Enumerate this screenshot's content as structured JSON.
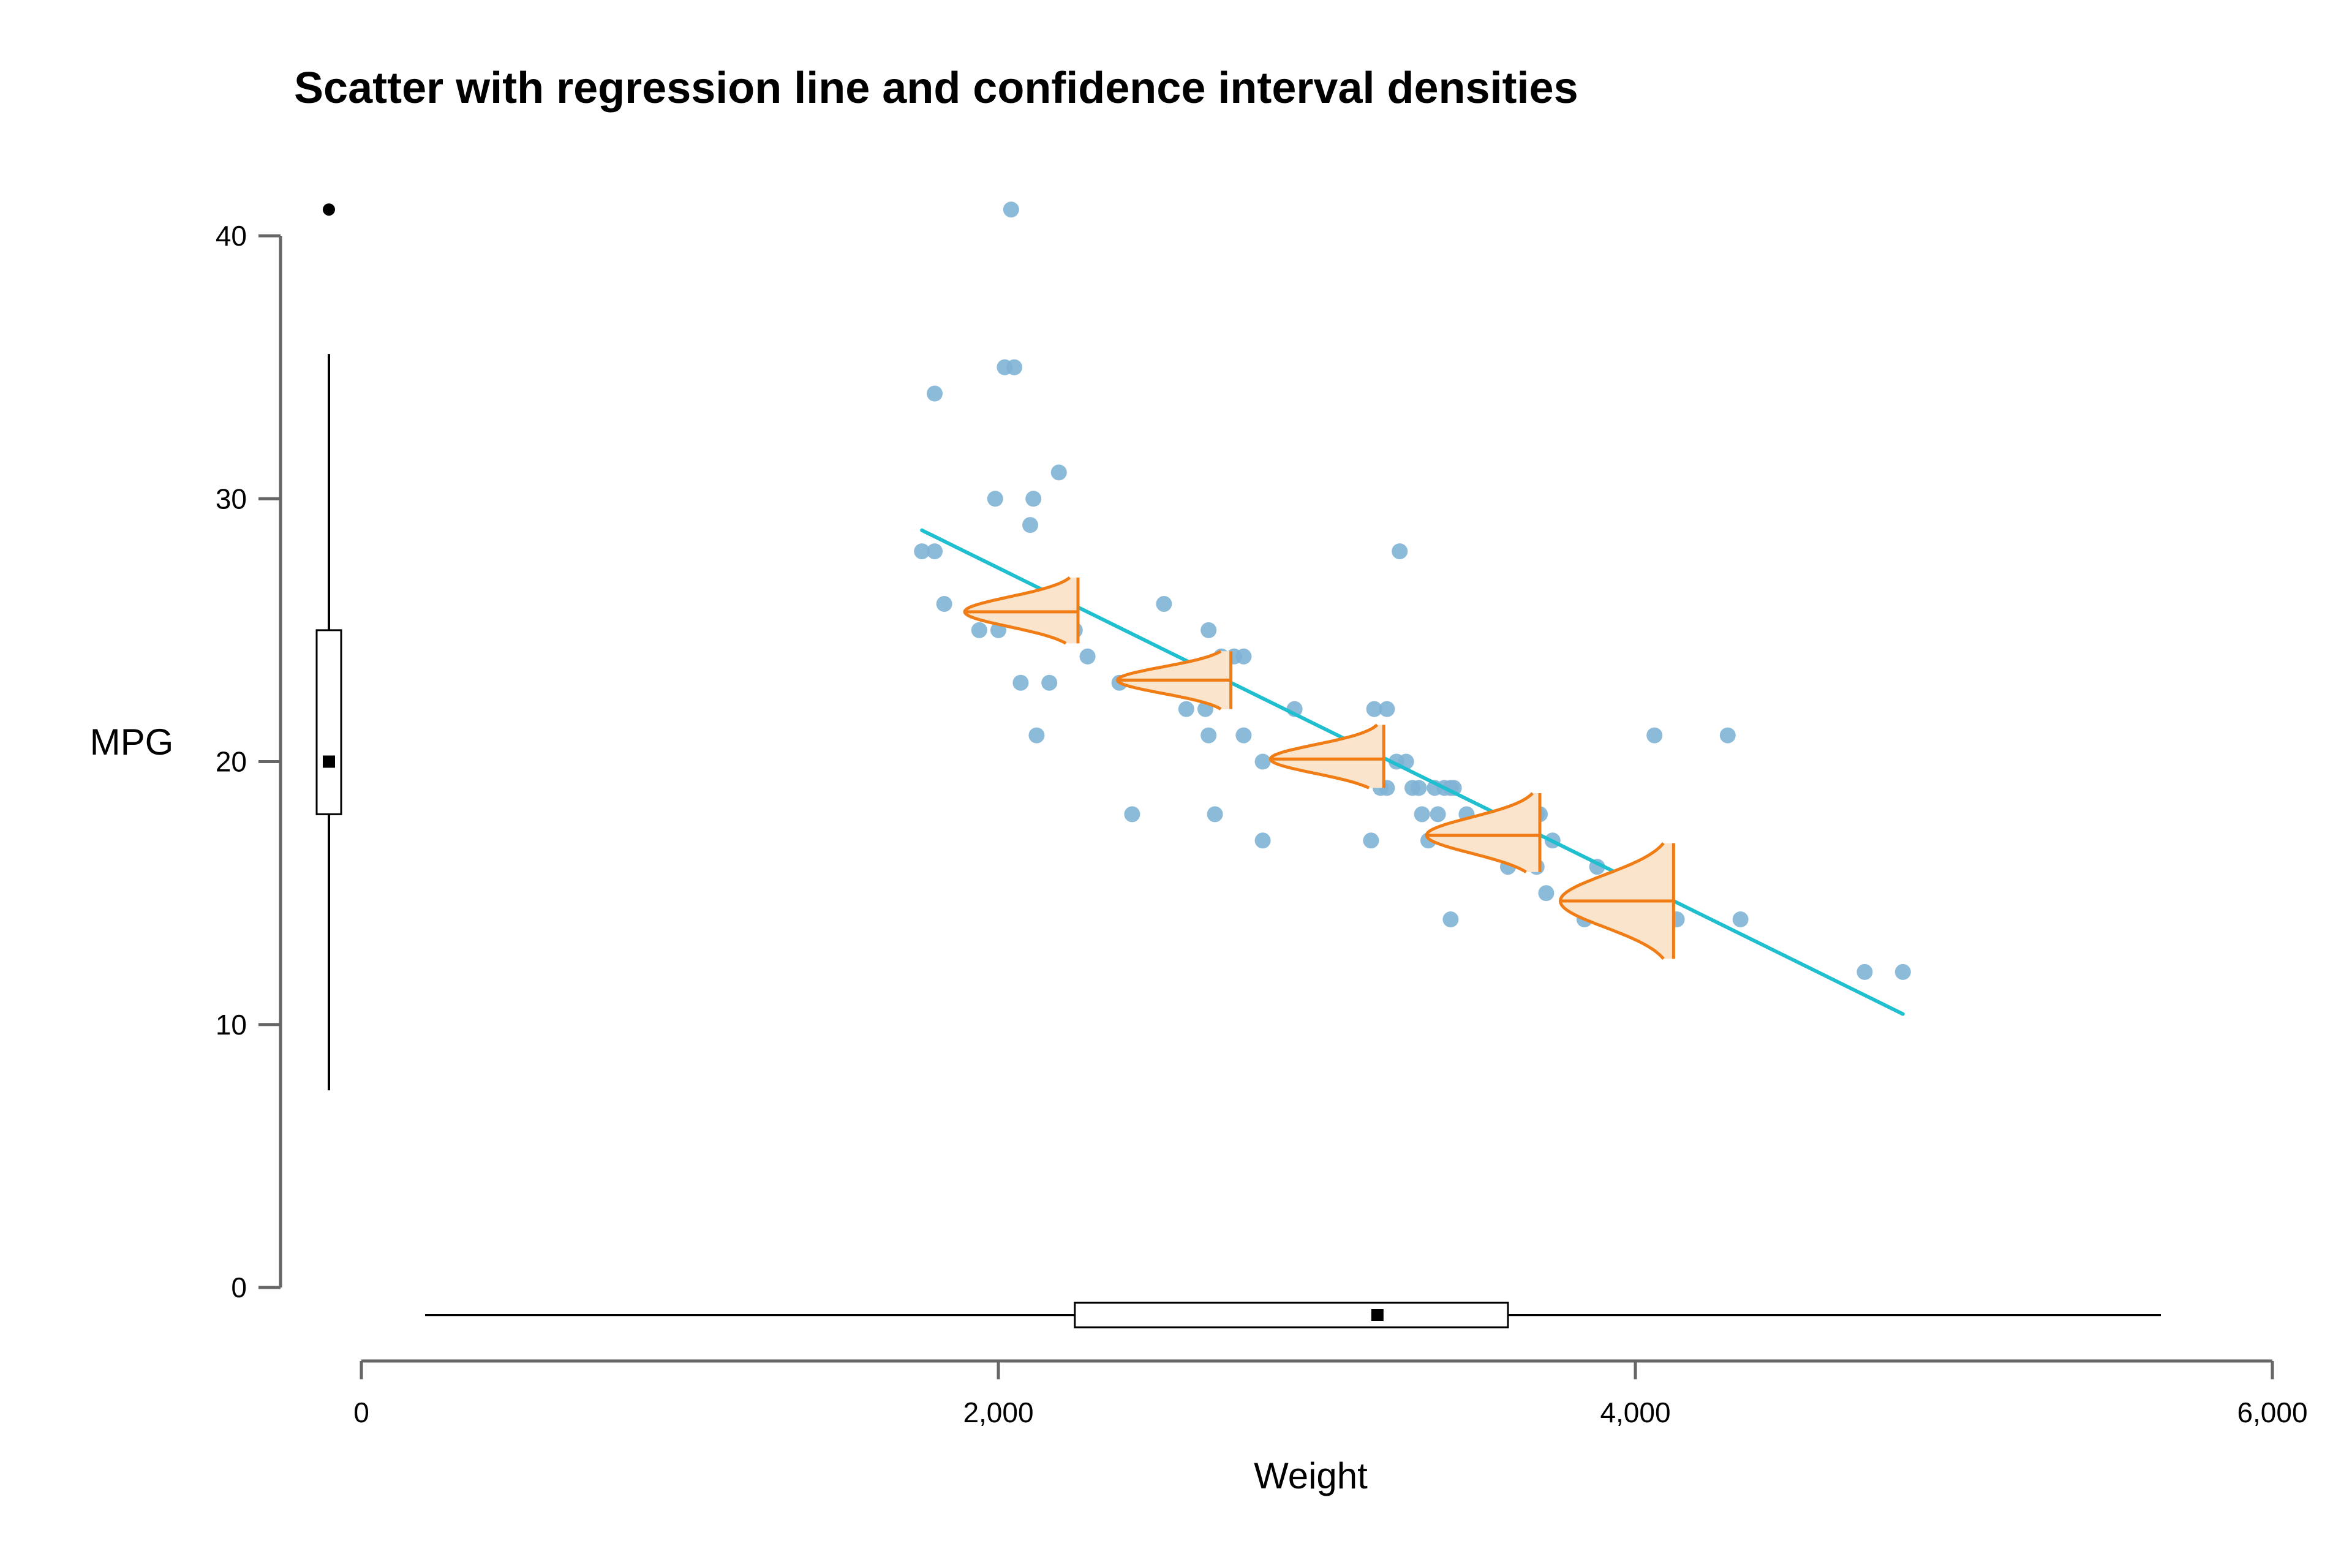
{
  "chart_data": {
    "type": "scatter",
    "title": "Scatter with regression line and confidence interval densities",
    "xlabel": "Weight",
    "ylabel": "MPG",
    "xlim": [
      0,
      6000
    ],
    "ylim": [
      0,
      40
    ],
    "x_ticks": [
      0,
      2000,
      4000,
      6000
    ],
    "x_tick_labels": [
      "0",
      "2,000",
      "4,000",
      "6,000"
    ],
    "y_ticks": [
      0,
      10,
      20,
      30,
      40
    ],
    "y_tick_labels": [
      "0",
      "10",
      "20",
      "30",
      "40"
    ],
    "grid": false,
    "colors": {
      "points": "#7fb2d5",
      "regression": "#1fbfcf",
      "density_line": "#f07c15",
      "density_fill": "#fbe4cc",
      "axis": "#666666",
      "boxplot": "#000000"
    },
    "points": [
      {
        "x": 1760,
        "y": 28
      },
      {
        "x": 1800,
        "y": 28
      },
      {
        "x": 1800,
        "y": 34
      },
      {
        "x": 1830,
        "y": 26
      },
      {
        "x": 1940,
        "y": 25
      },
      {
        "x": 1990,
        "y": 30
      },
      {
        "x": 2000,
        "y": 25
      },
      {
        "x": 2020,
        "y": 35
      },
      {
        "x": 2040,
        "y": 41
      },
      {
        "x": 2050,
        "y": 35
      },
      {
        "x": 2070,
        "y": 23
      },
      {
        "x": 2100,
        "y": 29
      },
      {
        "x": 2110,
        "y": 30
      },
      {
        "x": 2120,
        "y": 21
      },
      {
        "x": 2160,
        "y": 23
      },
      {
        "x": 2190,
        "y": 31
      },
      {
        "x": 2200,
        "y": 25
      },
      {
        "x": 2230,
        "y": 26
      },
      {
        "x": 2240,
        "y": 25
      },
      {
        "x": 2280,
        "y": 24
      },
      {
        "x": 2380,
        "y": 23
      },
      {
        "x": 2420,
        "y": 18
      },
      {
        "x": 2520,
        "y": 26
      },
      {
        "x": 2590,
        "y": 22
      },
      {
        "x": 2650,
        "y": 22
      },
      {
        "x": 2660,
        "y": 25
      },
      {
        "x": 2660,
        "y": 21
      },
      {
        "x": 2680,
        "y": 18
      },
      {
        "x": 2700,
        "y": 24
      },
      {
        "x": 2740,
        "y": 24
      },
      {
        "x": 2770,
        "y": 24
      },
      {
        "x": 2770,
        "y": 21
      },
      {
        "x": 2830,
        "y": 20
      },
      {
        "x": 2830,
        "y": 17
      },
      {
        "x": 2930,
        "y": 22
      },
      {
        "x": 3170,
        "y": 17
      },
      {
        "x": 3180,
        "y": 22
      },
      {
        "x": 3200,
        "y": 19
      },
      {
        "x": 3220,
        "y": 19
      },
      {
        "x": 3220,
        "y": 22
      },
      {
        "x": 3250,
        "y": 20
      },
      {
        "x": 3260,
        "y": 28
      },
      {
        "x": 3280,
        "y": 20
      },
      {
        "x": 3300,
        "y": 19
      },
      {
        "x": 3320,
        "y": 19
      },
      {
        "x": 3330,
        "y": 18
      },
      {
        "x": 3350,
        "y": 17
      },
      {
        "x": 3370,
        "y": 19
      },
      {
        "x": 3380,
        "y": 18
      },
      {
        "x": 3400,
        "y": 19
      },
      {
        "x": 3420,
        "y": 14
      },
      {
        "x": 3420,
        "y": 19
      },
      {
        "x": 3430,
        "y": 19
      },
      {
        "x": 3470,
        "y": 18
      },
      {
        "x": 3600,
        "y": 16
      },
      {
        "x": 3600,
        "y": 18
      },
      {
        "x": 3670,
        "y": 18
      },
      {
        "x": 3690,
        "y": 16
      },
      {
        "x": 3690,
        "y": 18
      },
      {
        "x": 3700,
        "y": 18
      },
      {
        "x": 3720,
        "y": 15
      },
      {
        "x": 3740,
        "y": 17
      },
      {
        "x": 3840,
        "y": 14
      },
      {
        "x": 3880,
        "y": 16
      },
      {
        "x": 3900,
        "y": 14
      },
      {
        "x": 4030,
        "y": 16
      },
      {
        "x": 4050,
        "y": 14
      },
      {
        "x": 4060,
        "y": 21
      },
      {
        "x": 4080,
        "y": 15
      },
      {
        "x": 4130,
        "y": 14
      },
      {
        "x": 4290,
        "y": 21
      },
      {
        "x": 4330,
        "y": 14
      },
      {
        "x": 4720,
        "y": 12
      },
      {
        "x": 4840,
        "y": 12
      }
    ],
    "regression": {
      "x": [
        1760,
        4840
      ],
      "y": [
        28.8,
        10.4
      ]
    },
    "ci_densities": [
      {
        "x": 2250,
        "y": 25.7,
        "lower": 24.5,
        "upper": 27.0
      },
      {
        "x": 2730,
        "y": 23.1,
        "lower": 22.0,
        "upper": 24.2
      },
      {
        "x": 3210,
        "y": 20.1,
        "lower": 19.0,
        "upper": 21.4
      },
      {
        "x": 3700,
        "y": 17.2,
        "lower": 15.8,
        "upper": 18.8
      },
      {
        "x": 4120,
        "y": 14.7,
        "lower": 12.5,
        "upper": 16.9
      }
    ],
    "mpg_boxplot": {
      "whisker_low": 7.5,
      "q1": 18,
      "median": 20,
      "q3": 25,
      "whisker_high": 35.5,
      "outliers": [
        41
      ]
    },
    "weight_boxplot": {
      "whisker_low": 200,
      "q1": 2240,
      "median": 3190,
      "q3": 3600,
      "whisker_high": 5650
    }
  }
}
